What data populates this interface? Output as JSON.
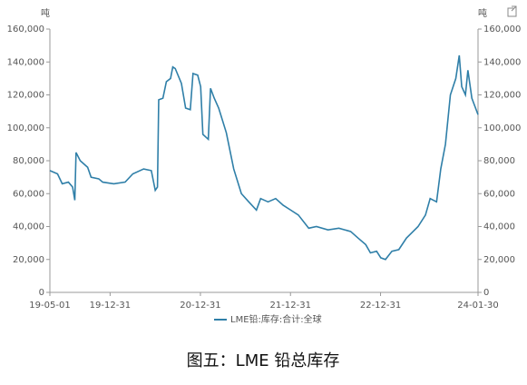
{
  "chart_data": {
    "type": "line",
    "caption": "图五：LME 铅总库存",
    "y_label": "吨",
    "y2_label": "吨",
    "x": [
      "19-05-01",
      "19-06-01",
      "19-06-20",
      "19-07-15",
      "19-08-01",
      "19-08-10",
      "19-08-15",
      "19-09-01",
      "19-10-01",
      "19-10-15",
      "19-11-15",
      "19-12-01",
      "20-01-15",
      "20-03-01",
      "20-04-01",
      "20-05-15",
      "20-06-15",
      "20-07-01",
      "20-07-10",
      "20-07-15",
      "20-08-01",
      "20-08-15",
      "20-09-01",
      "20-09-10",
      "20-09-20",
      "20-10-15",
      "20-11-01",
      "20-11-20",
      "20-12-01",
      "20-12-20",
      "21-01-01",
      "21-01-10",
      "21-02-01",
      "21-02-10",
      "21-02-25",
      "21-03-15",
      "21-04-15",
      "21-05-15",
      "21-06-15",
      "21-07-15",
      "21-08-15",
      "21-09-01",
      "21-10-01",
      "21-11-01",
      "21-12-01",
      "22-01-01",
      "22-02-01",
      "22-03-15",
      "22-04-15",
      "22-06-01",
      "22-07-15",
      "22-09-01",
      "22-10-01",
      "22-11-01",
      "22-11-20",
      "22-12-15",
      "23-01-01",
      "23-01-20",
      "23-02-15",
      "23-03-15",
      "23-04-15",
      "23-06-01",
      "23-07-01",
      "23-07-20",
      "23-08-15",
      "23-09-01",
      "23-09-20",
      "23-10-10",
      "23-11-01",
      "23-11-15",
      "23-11-25",
      "23-12-10",
      "23-12-20",
      "24-01-05",
      "24-01-20",
      "24-01-30"
    ],
    "series": [
      {
        "name": "LME铅:库存:合计:全球",
        "color": "#2f7fa8",
        "values": [
          74000,
          72000,
          66000,
          67000,
          64000,
          56000,
          85000,
          80000,
          76000,
          70000,
          69000,
          67000,
          66000,
          67000,
          72000,
          75000,
          74000,
          62000,
          64000,
          117000,
          118000,
          128000,
          130000,
          137000,
          136000,
          127000,
          112000,
          111000,
          133000,
          132000,
          125000,
          96000,
          93000,
          124000,
          118000,
          112000,
          97000,
          75000,
          60000,
          55000,
          50000,
          57000,
          55000,
          57000,
          53000,
          50000,
          47000,
          39000,
          40000,
          38000,
          39000,
          37000,
          33000,
          29000,
          24000,
          25000,
          21000,
          20000,
          25000,
          26000,
          33000,
          40000,
          47000,
          57000,
          55000,
          75000,
          90000,
          120000,
          130000,
          144000,
          125000,
          120000,
          135000,
          118000,
          112000,
          108000
        ]
      }
    ],
    "xlim": [
      "19-05-01",
      "24-01-30"
    ],
    "xticks": [
      "19-05-01",
      "19-12-31",
      "20-12-31",
      "21-12-31",
      "22-12-31",
      "24-01-30"
    ],
    "ylim": [
      0,
      160000
    ],
    "yticks": [
      0,
      {
        "value": 20000,
        "label": "20,000"
      },
      {
        "value": 40000,
        "label": "40,000"
      },
      {
        "value": 60000,
        "label": "60,000"
      },
      {
        "value": 80000,
        "label": "80,000"
      },
      {
        "value": 100000,
        "label": "100,000"
      },
      {
        "value": 120000,
        "label": "120,000"
      },
      {
        "value": 140000,
        "label": "140,000"
      },
      {
        "value": 160000,
        "label": "160,000"
      }
    ],
    "y2lim": [
      0,
      160000
    ],
    "y2ticks": [
      0,
      {
        "value": 20000,
        "label": "20,000"
      },
      {
        "value": 40000,
        "label": "40,000"
      },
      {
        "value": 60000,
        "label": "60,000"
      },
      {
        "value": 80000,
        "label": "80,000"
      },
      {
        "value": 100000,
        "label": "100,000"
      },
      {
        "value": 120000,
        "label": "120,000"
      },
      {
        "value": 140000,
        "label": "140,000"
      },
      {
        "value": 160000,
        "label": "160,000"
      }
    ],
    "grid": false
  }
}
